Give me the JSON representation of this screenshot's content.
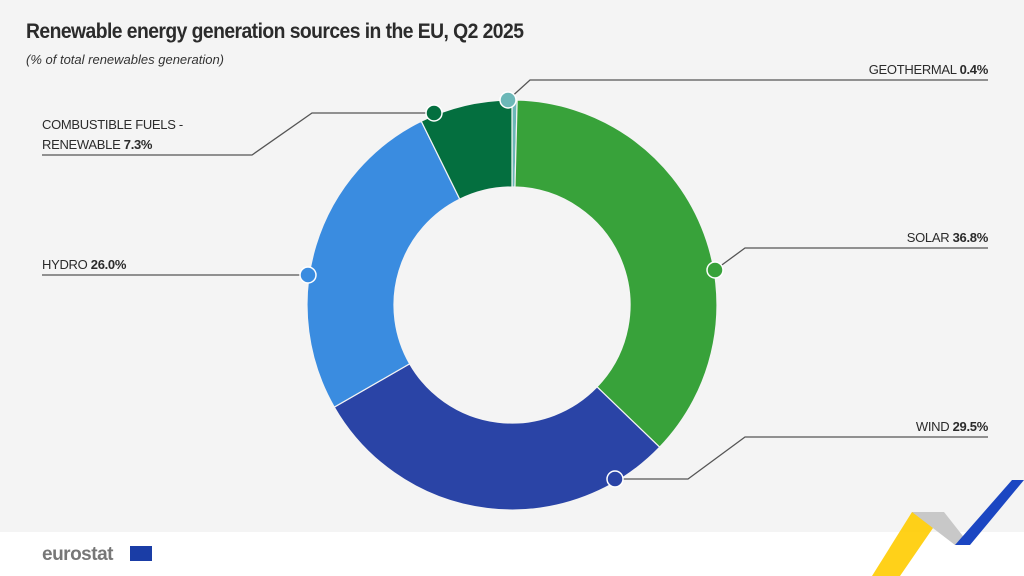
{
  "chart_data": {
    "type": "pie",
    "donut": true,
    "title": "Renewable energy generation sources in the EU, Q2 2025",
    "subtitle": "(% of total renewables generation)",
    "unit": "%",
    "slices": [
      {
        "name": "Geothermal",
        "value": 0.4,
        "label": "GEOTHERMAL",
        "value_label": "0.4%",
        "color": "#6cb8b8"
      },
      {
        "name": "Solar",
        "value": 36.8,
        "label": "SOLAR",
        "value_label": "36.8%",
        "color": "#38a23a"
      },
      {
        "name": "Wind",
        "value": 29.5,
        "label": "WIND",
        "value_label": "29.5%",
        "color": "#2a44a6"
      },
      {
        "name": "Hydro",
        "value": 26.0,
        "label": "HYDRO",
        "value_label": "26.0%",
        "color": "#3a8ce0"
      },
      {
        "name": "Combustible fuels - renewable",
        "value": 7.3,
        "label_line1": "COMBUSTIBLE FUELS -",
        "label_line2": "RENEWABLE",
        "value_label": "7.3%",
        "color": "#046f3f"
      }
    ]
  },
  "footer": {
    "logo": "eurostat"
  }
}
